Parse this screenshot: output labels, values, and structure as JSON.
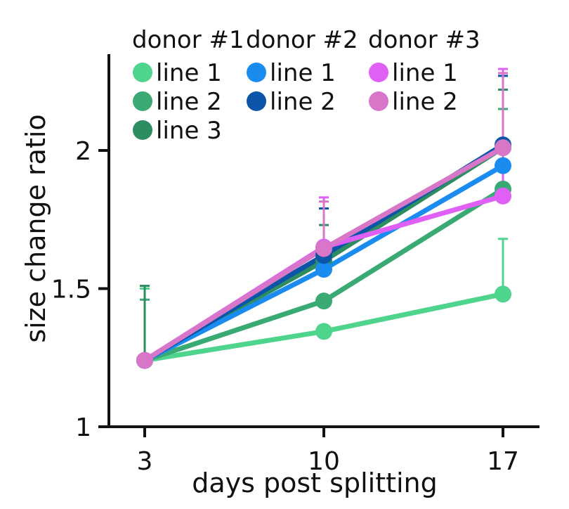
{
  "chart_data": {
    "type": "line",
    "xlabel": "days post splitting",
    "ylabel": "size change ratio",
    "x": [
      3,
      10,
      17
    ],
    "x_tick_labels": [
      "3",
      "10",
      "17"
    ],
    "ylim": [
      1,
      2.3
    ],
    "y_ticks": [
      1,
      1.5,
      2
    ],
    "y_tick_labels": [
      "1",
      "1.5",
      "2"
    ],
    "legend_groups": [
      {
        "title": "donor #1",
        "entries": [
          {
            "label": "line 1",
            "color": "#4fd48e"
          },
          {
            "label": "line 2",
            "color": "#3aaa74"
          },
          {
            "label": "line 3",
            "color": "#2e8d60"
          }
        ]
      },
      {
        "title": "donor #2",
        "entries": [
          {
            "label": "line 1",
            "color": "#1a8cf0"
          },
          {
            "label": "line 2",
            "color": "#0a55a8"
          }
        ]
      },
      {
        "title": "donor #3",
        "entries": [
          {
            "label": "line 1",
            "color": "#e060f5"
          },
          {
            "label": "line 2",
            "color": "#d876c8"
          }
        ]
      }
    ],
    "series": [
      {
        "name": "donor #1 line 1",
        "color": "#4fd48e",
        "values": [
          1.24,
          1.345,
          1.48
        ],
        "err": [
          0.26,
          0.0,
          0.2
        ]
      },
      {
        "name": "donor #1 line 2",
        "color": "#3aaa74",
        "values": [
          1.24,
          1.455,
          1.86
        ],
        "err": [
          0.22,
          0.0,
          0.29
        ]
      },
      {
        "name": "donor #1 line 3",
        "color": "#2e8d60",
        "values": [
          1.24,
          1.6,
          2.01
        ],
        "err": [
          0.27,
          0.13,
          0.21
        ]
      },
      {
        "name": "donor #2 line 1",
        "color": "#1a8cf0",
        "values": [
          1.24,
          1.57,
          1.945
        ],
        "err": [
          0.0,
          0.0,
          0.0
        ]
      },
      {
        "name": "donor #2 line 2",
        "color": "#0a55a8",
        "values": [
          1.24,
          1.62,
          2.02
        ],
        "err": [
          0.0,
          0.17,
          0.25
        ]
      },
      {
        "name": "donor #3 line 1",
        "color": "#e060f5",
        "values": [
          1.24,
          1.65,
          1.835
        ],
        "err": [
          0.0,
          0.18,
          0.46
        ]
      },
      {
        "name": "donor #3 line 2",
        "color": "#d876c8",
        "values": [
          1.24,
          1.645,
          2.01
        ],
        "err": [
          0.0,
          0.17,
          0.27
        ]
      }
    ]
  }
}
